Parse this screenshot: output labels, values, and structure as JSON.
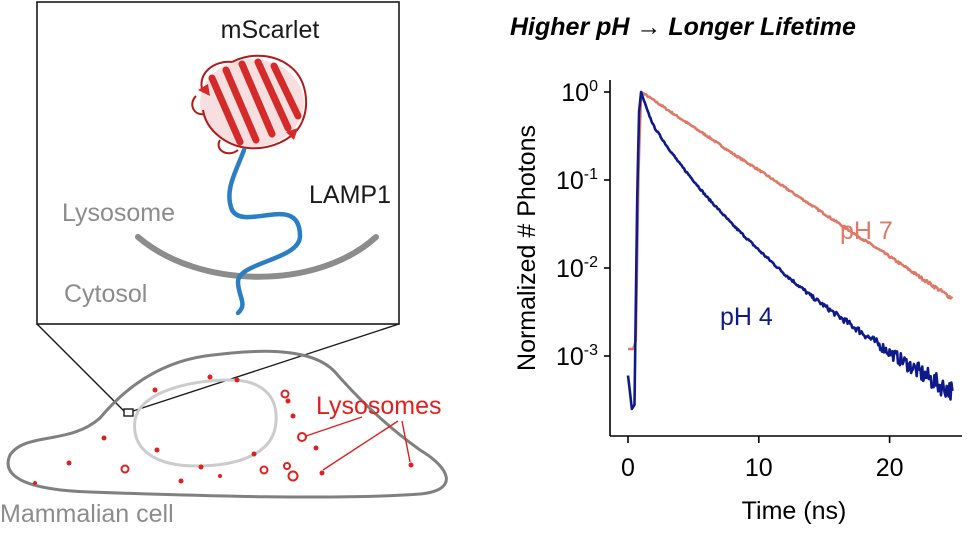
{
  "inset": {
    "protein_label": "mScarlet",
    "linker_label": "LAMP1",
    "lumen_label": "Lysosome",
    "cytosol_label": "Cytosol"
  },
  "cell": {
    "label": "Mammalian cell",
    "lysosomes_label": "Lysosomes"
  },
  "colors": {
    "protein": "#d42a2a",
    "linker": "#2a7ec4",
    "membrane": "#8c8c8c",
    "cell_outline": "#808080",
    "nucleus": "#cccccc",
    "lysosomes": "#e0201e",
    "ph7": "#e07866",
    "ph4": "#0f1a8a"
  },
  "chart_data": {
    "type": "line",
    "title": "Higher pH → Longer Lifetime",
    "xlabel": "Time (ns)",
    "ylabel": "Normalized  # Photons",
    "x_ticks": [
      "0",
      "10",
      "20"
    ],
    "y_ticks": [
      "10",
      "10",
      "10",
      "10"
    ],
    "y_tick_exponents": [
      "0",
      "-1",
      "-2",
      "-3"
    ],
    "xlim": [
      0,
      25
    ],
    "y_scale": "log",
    "ylim": [
      0.00018,
      1.3
    ],
    "series": [
      {
        "name": "pH 7",
        "color": "#e07866",
        "x": [
          0,
          0.4,
          0.6,
          0.8,
          1.0,
          2,
          4,
          6,
          8,
          10,
          12,
          14,
          16,
          18,
          20,
          22,
          24,
          24.8
        ],
        "y": [
          0.0012,
          0.0012,
          0.0015,
          0.12,
          1.0,
          0.8,
          0.5,
          0.32,
          0.2,
          0.13,
          0.082,
          0.052,
          0.033,
          0.021,
          0.0135,
          0.0085,
          0.0054,
          0.0045
        ]
      },
      {
        "name": "pH 4",
        "color": "#0f1a8a",
        "x": [
          0,
          0.3,
          0.5,
          0.7,
          0.85,
          1.0,
          1.5,
          2,
          3,
          4,
          6,
          8,
          10,
          12,
          14,
          16,
          18,
          20,
          22,
          24,
          24.8
        ],
        "y": [
          0.0006,
          0.00025,
          0.00028,
          0.06,
          0.6,
          1.0,
          0.6,
          0.4,
          0.24,
          0.15,
          0.065,
          0.031,
          0.016,
          0.0085,
          0.0048,
          0.0029,
          0.0018,
          0.0011,
          0.0007,
          0.00045,
          0.0004
        ]
      }
    ]
  }
}
